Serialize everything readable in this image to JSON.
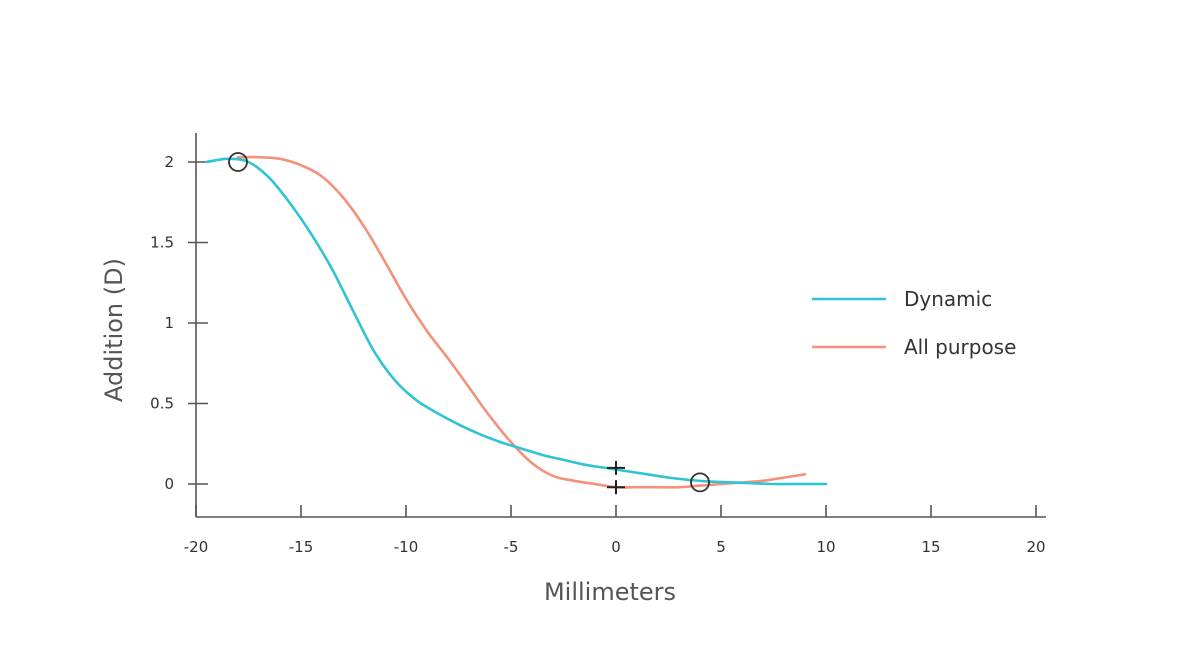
{
  "chart_data": {
    "type": "line",
    "title": "",
    "xlabel": "Millimeters",
    "ylabel": "Addition (D)",
    "xlim": [
      -20,
      20
    ],
    "ylim": [
      -0.2,
      2.15
    ],
    "x_ticks": [
      "-20",
      "-15",
      "-10",
      "-5",
      "0",
      "5",
      "10",
      "15",
      "20"
    ],
    "y_ticks": [
      "0",
      "0.5",
      "1",
      "1.5",
      "2"
    ],
    "grid": false,
    "legend_position": "right",
    "series": [
      {
        "name": "Dynamic",
        "color": "#2ec4d4",
        "x": [
          -19.5,
          -18.5,
          -17.5,
          -16.5,
          -15.5,
          -14.5,
          -13.5,
          -12.5,
          -11.5,
          -10.5,
          -9.5,
          -8.5,
          -7.5,
          -6.5,
          -5.5,
          -4.5,
          -3.5,
          -2.5,
          -1.5,
          -0.5,
          0.5,
          1.5,
          2.5,
          3.5,
          4.5,
          5.5,
          6.5,
          7.5,
          8.5,
          9.5,
          10
        ],
        "y": [
          2.0,
          2.02,
          2.0,
          1.9,
          1.74,
          1.55,
          1.33,
          1.07,
          0.82,
          0.64,
          0.52,
          0.44,
          0.37,
          0.31,
          0.26,
          0.22,
          0.18,
          0.15,
          0.12,
          0.1,
          0.08,
          0.06,
          0.04,
          0.025,
          0.015,
          0.01,
          0.005,
          0.0,
          0.0,
          0.0,
          0.0
        ]
      },
      {
        "name": "All purpose",
        "color": "#f3917a",
        "x": [
          -18.0,
          -17.0,
          -16.0,
          -15.0,
          -14.0,
          -13.0,
          -12.0,
          -11.0,
          -10.0,
          -9.0,
          -8.0,
          -7.0,
          -6.0,
          -5.0,
          -4.0,
          -3.0,
          -2.0,
          -1.0,
          0.0,
          1.0,
          2.0,
          3.0,
          4.0,
          5.0,
          6.0,
          7.0,
          8.0,
          9.0
        ],
        "y": [
          2.03,
          2.03,
          2.02,
          1.98,
          1.91,
          1.78,
          1.6,
          1.38,
          1.15,
          0.95,
          0.78,
          0.6,
          0.42,
          0.26,
          0.13,
          0.05,
          0.02,
          0.0,
          -0.02,
          -0.02,
          -0.02,
          -0.02,
          -0.01,
          0.0,
          0.01,
          0.02,
          0.04,
          0.06
        ]
      }
    ],
    "markers": [
      {
        "type": "circle",
        "x": -18,
        "y": 2.0
      },
      {
        "type": "circle",
        "x": 4,
        "y": 0.01
      },
      {
        "type": "cross",
        "x": 0,
        "y": 0.1
      },
      {
        "type": "cross",
        "x": 0,
        "y": -0.02
      }
    ]
  }
}
